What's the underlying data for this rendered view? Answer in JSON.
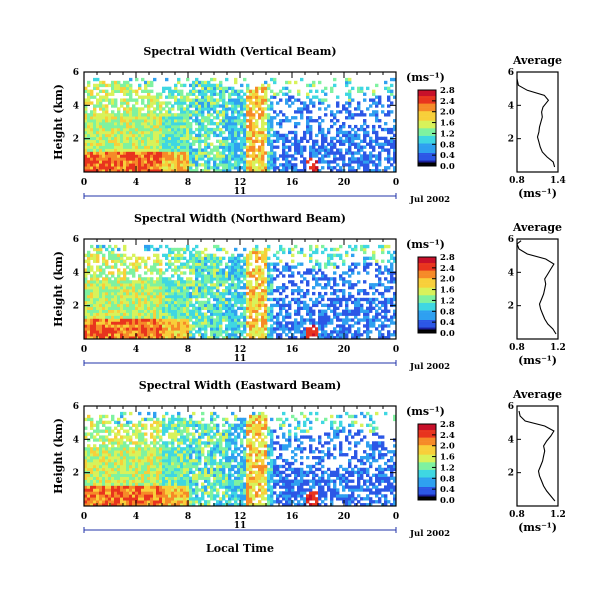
{
  "figure": {
    "ylabel": "Height (km)",
    "xlabel": "Local Time",
    "date_label": "Jul 2002",
    "day_label": "11",
    "colorbar_unit": "(ms⁻¹)",
    "avg_title": "Average",
    "avg_xlabel": "(ms⁻¹)"
  },
  "colormap": [
    "#000000",
    "#1b1f9c",
    "#2c57e6",
    "#2fa0f0",
    "#3fd7e2",
    "#7ff2a0",
    "#d8f25a",
    "#f8cf3a",
    "#f68a28",
    "#e8341e",
    "#c8102a"
  ],
  "chart_data": [
    {
      "type": "heatmap",
      "title": "Spectral Width (Vertical Beam)",
      "xlabel": "",
      "ylabel": "Height (km)",
      "x_ticks": [
        "0",
        "4",
        "8",
        "12",
        "16",
        "20",
        "0"
      ],
      "y_ticks": [
        "2",
        "4",
        "6"
      ],
      "xlim": [
        0,
        24
      ],
      "ylim": [
        0,
        6
      ],
      "colorbar": {
        "min": 0.0,
        "max": 2.8,
        "ticks": [
          "0.0",
          "0.4",
          "0.8",
          "1.2",
          "1.6",
          "2.0",
          "2.4",
          "2.8"
        ]
      },
      "profile": {
        "title": "Average",
        "xlim": [
          0.8,
          1.4
        ],
        "x_ticks": [
          "0.8",
          "1.4"
        ],
        "ylim": [
          0,
          6
        ],
        "y_ticks": [
          "2",
          "4",
          "6"
        ],
        "x": [
          1.35,
          1.33,
          1.24,
          1.17,
          1.14,
          1.12,
          1.1,
          1.12,
          1.13,
          1.15,
          1.17,
          1.16,
          1.18,
          1.22,
          1.26,
          1.2,
          0.95,
          0.82,
          0.8
        ],
        "y": [
          0.3,
          0.6,
          0.9,
          1.2,
          1.5,
          1.8,
          2.1,
          2.4,
          2.7,
          3.0,
          3.3,
          3.6,
          3.9,
          4.1,
          4.3,
          4.6,
          4.9,
          5.2,
          5.6
        ]
      }
    },
    {
      "type": "heatmap",
      "title": "Spectral Width (Northward Beam)",
      "xlabel": "",
      "ylabel": "Height (km)",
      "x_ticks": [
        "0",
        "4",
        "8",
        "12",
        "16",
        "20",
        "0"
      ],
      "y_ticks": [
        "2",
        "4",
        "6"
      ],
      "xlim": [
        0,
        24
      ],
      "ylim": [
        0,
        6
      ],
      "colorbar": {
        "min": 0.0,
        "max": 2.8,
        "ticks": [
          "0.0",
          "0.4",
          "0.8",
          "1.2",
          "1.6",
          "2.0",
          "2.4",
          "2.8"
        ]
      },
      "profile": {
        "title": "Average",
        "xlim": [
          0.8,
          1.2
        ],
        "x_ticks": [
          "0.8",
          "1.2"
        ],
        "ylim": [
          0,
          6
        ],
        "y_ticks": [
          "2",
          "4",
          "6"
        ],
        "x": [
          1.18,
          1.15,
          1.1,
          1.07,
          1.05,
          1.03,
          1.02,
          1.04,
          1.06,
          1.07,
          1.08,
          1.07,
          1.1,
          1.13,
          1.16,
          1.08,
          0.9,
          0.82,
          0.8,
          0.84
        ],
        "y": [
          0.3,
          0.6,
          0.9,
          1.2,
          1.5,
          1.8,
          2.1,
          2.4,
          2.7,
          3.0,
          3.3,
          3.6,
          3.9,
          4.2,
          4.5,
          4.8,
          5.1,
          5.4,
          5.7,
          5.9
        ]
      }
    },
    {
      "type": "heatmap",
      "title": "Spectral Width (Eastward Beam)",
      "xlabel": "Local Time",
      "ylabel": "Height (km)",
      "x_ticks": [
        "0",
        "4",
        "8",
        "12",
        "16",
        "20",
        "0"
      ],
      "y_ticks": [
        "2",
        "4",
        "6"
      ],
      "xlim": [
        0,
        24
      ],
      "ylim": [
        0,
        6
      ],
      "colorbar": {
        "min": 0.0,
        "max": 2.8,
        "ticks": [
          "0.0",
          "0.4",
          "0.8",
          "1.2",
          "1.6",
          "2.0",
          "2.4",
          "2.8"
        ]
      },
      "profile": {
        "title": "Average",
        "xlim": [
          0.8,
          1.2
        ],
        "x_ticks": [
          "0.8",
          "1.2"
        ],
        "ylim": [
          0,
          6
        ],
        "y_ticks": [
          "2",
          "4",
          "6"
        ],
        "x": [
          1.17,
          1.13,
          1.09,
          1.06,
          1.04,
          1.02,
          1.01,
          1.03,
          1.05,
          1.06,
          1.07,
          1.06,
          1.09,
          1.13,
          1.16,
          1.07,
          0.88,
          0.83,
          0.82
        ],
        "y": [
          0.3,
          0.6,
          0.9,
          1.2,
          1.5,
          1.8,
          2.1,
          2.4,
          2.7,
          3.0,
          3.3,
          3.6,
          3.9,
          4.2,
          4.5,
          4.8,
          5.1,
          5.4,
          5.7
        ]
      }
    }
  ]
}
